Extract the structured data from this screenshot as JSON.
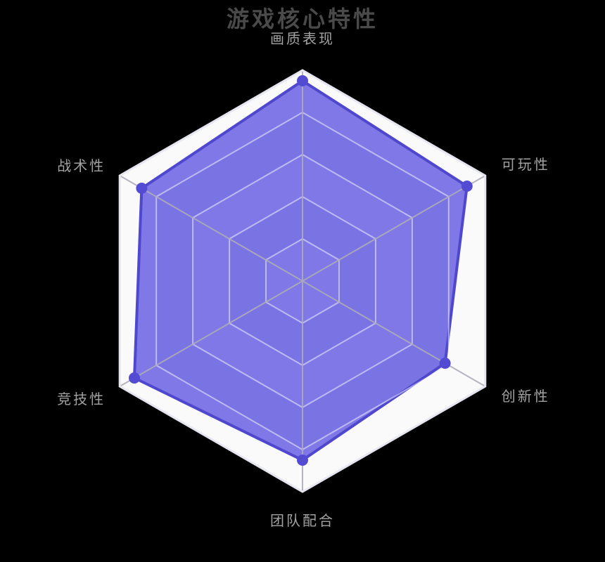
{
  "title": {
    "text": "游戏核心特性"
  },
  "colors": {
    "background": "#000000",
    "title_text": "#4a4a4a",
    "axis_label_text": "#a2a2a2",
    "split_area_light": "#fafafa",
    "split_area_dark": "#e9e9ef",
    "outer_ring_line": "#e6e6f0",
    "grid_ring_line": "rgba(255,255,255,0.5)",
    "axis_spoke_line": "rgba(172,172,183,0.9)",
    "series_fill": "rgba(84,74,222,0.74)",
    "series_stroke": "#4f47cd",
    "series_point": "#544bd3"
  },
  "chart_data": {
    "type": "radar",
    "title": "游戏核心特性",
    "shape": "hexagon",
    "levels": 5,
    "start_angle_deg": 90,
    "max": 100,
    "grid": "on",
    "tick_labels": "none",
    "indicators": [
      {
        "name": "画质表现",
        "max": 100
      },
      {
        "name": "可玩性",
        "max": 100
      },
      {
        "name": "创新性",
        "max": 100
      },
      {
        "name": "团队配合",
        "max": 100
      },
      {
        "name": "竞技性",
        "max": 100
      },
      {
        "name": "战术性",
        "max": 100
      }
    ],
    "series": [
      {
        "values": [
          95,
          90,
          78,
          85,
          92,
          88
        ]
      }
    ]
  }
}
